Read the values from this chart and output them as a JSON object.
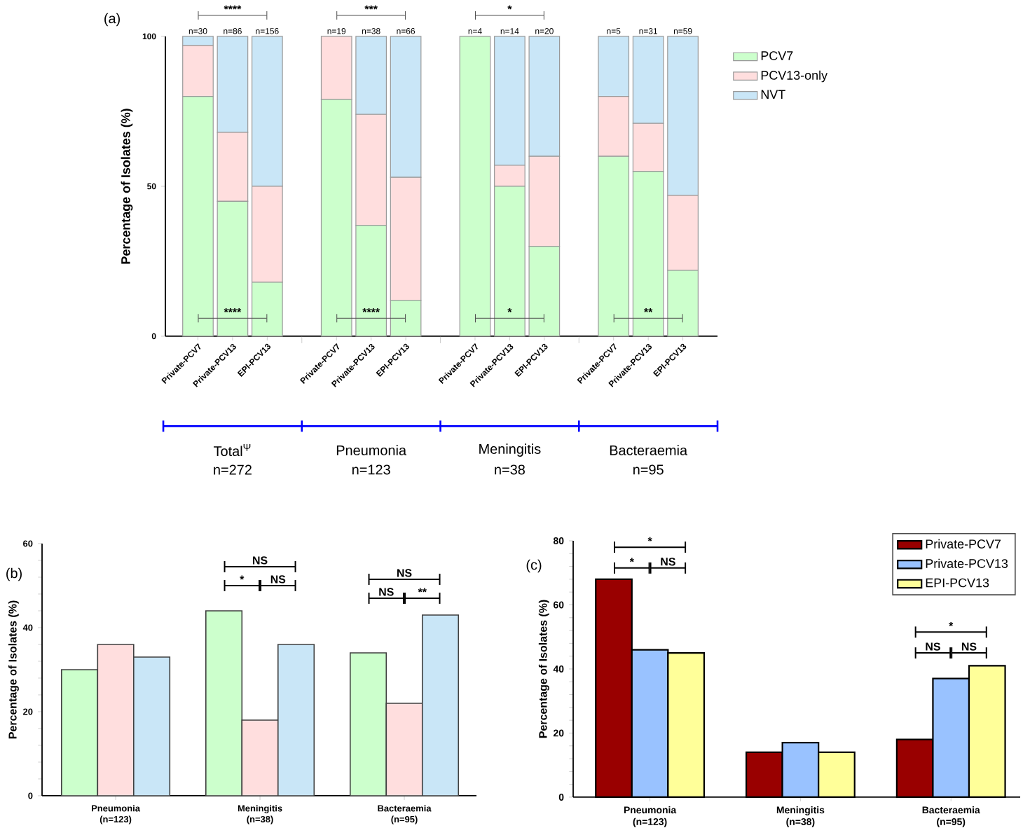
{
  "chart_data": [
    {
      "type": "bar",
      "stacked": true,
      "title": "(a)",
      "ylabel": "Percentage of Isolates (%)",
      "categories": [
        "Private-PCV7",
        "Private-PCV13",
        "EPI-PCV13",
        "Private-PCV7",
        "Private-PCV13",
        "EPI-PCV13",
        "Private-PCV7",
        "Private-PCV13",
        "EPI-PCV13",
        "Private-PCV7",
        "Private-PCV13",
        "EPI-PCV13"
      ],
      "series": [
        {
          "name": "PCV7",
          "color": "#ccffcc",
          "values": [
            80,
            45,
            18,
            79,
            37,
            12,
            100,
            50,
            30,
            60,
            55,
            22
          ]
        },
        {
          "name": "PCV13-only",
          "color": "#ffdede",
          "values": [
            17,
            23,
            32,
            21,
            37,
            41,
            0,
            7,
            30,
            20,
            16,
            25
          ]
        },
        {
          "name": "NVT",
          "color": "#c9e6f7",
          "values": [
            3,
            32,
            50,
            0,
            26,
            47,
            0,
            43,
            40,
            20,
            29,
            53
          ]
        }
      ],
      "ylim": [
        0,
        100
      ],
      "yticks": [
        0,
        50,
        100
      ],
      "legend": "top right",
      "annotations": [
        "****",
        "***",
        "*",
        "****",
        "****",
        "*",
        "**",
        "Total$^{Ψ}$",
        "Pneumonia",
        "Meningitis",
        "Bacteraemia",
        "n=272",
        "n=123",
        "n=38",
        "n=95",
        "n=30",
        "n=86",
        "n=156",
        "n=19",
        "n=38",
        "n=66",
        "n=4",
        "n=14",
        "n=20",
        "n=5",
        "n=31",
        "n=59"
      ]
    },
    {
      "type": "bar",
      "title": "(b)",
      "ylabel": "Percentage of Isolates (%)",
      "categories": [
        "Pneumonia (n=123)",
        "Meningitis (n=38)",
        "Bacteraemia (n=95)"
      ],
      "series": [
        {
          "color": "#ccffcc",
          "values": [
            30,
            44,
            34
          ]
        },
        {
          "color": "#ffdede",
          "values": [
            36,
            18,
            22
          ]
        },
        {
          "color": "#c9e6f7",
          "values": [
            33,
            36,
            43
          ]
        }
      ],
      "ylim": [
        0,
        60
      ],
      "yticks": [
        0,
        20,
        40,
        60
      ],
      "annotations": [
        "NS",
        "*",
        "NS",
        "NS",
        "NS",
        "**"
      ]
    },
    {
      "type": "bar",
      "title": "(c)",
      "ylabel": "Percentage of Isolates (%)",
      "categories": [
        "Pneumonia (n=123)",
        "Meningitis (n=38)",
        "Bacteraemia (n=95)"
      ],
      "series": [
        {
          "name": "Private-PCV7",
          "color": "#990000",
          "values": [
            68,
            14,
            18
          ]
        },
        {
          "name": "Private-PCV13",
          "color": "#99c2ff",
          "values": [
            46,
            17,
            37
          ]
        },
        {
          "name": "EPI-PCV13",
          "color": "#ffff99",
          "values": [
            45,
            14,
            41
          ]
        }
      ],
      "ylim": [
        0,
        80
      ],
      "yticks": [
        0,
        20,
        40,
        60,
        80
      ],
      "legend": "top right",
      "annotations": [
        "*",
        "*",
        "NS",
        "*",
        "NS",
        "NS"
      ]
    }
  ]
}
